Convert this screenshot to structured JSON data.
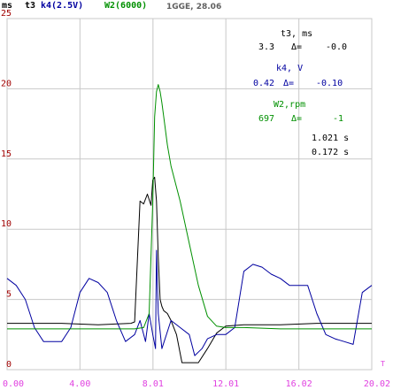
{
  "colors": {
    "background": "#ffffff",
    "grid": "#c8c8c8",
    "axis_tick_labels_y": "#a00000",
    "axis_tick_labels_x": "#e040e0",
    "t3": "#000000",
    "k4": "#0000a0",
    "w2": "#009000",
    "header_gray": "#606060"
  },
  "header": {
    "unit": "ms",
    "t3_label": "t3",
    "k4_label": "k4(2.5V)",
    "w2_label": "W2(6000)",
    "info": "1GGE, 28.06"
  },
  "readout": {
    "t3_title": "t3, ms",
    "t3_value": "3.3",
    "t3_delta_sign": "Δ=",
    "t3_delta": "-0.0",
    "k4_title": "k4, V",
    "k4_value": "0.42",
    "k4_delta_sign": "Δ=",
    "k4_delta": "-0.10",
    "w2_title": "W2,rpm",
    "w2_value": "697",
    "w2_delta_sign": "Δ=",
    "w2_delta": "-1",
    "time1": "1.021 s",
    "time2": "0.172 s"
  },
  "chart_data": {
    "type": "line",
    "title": "",
    "xlabel": "",
    "ylabel": "ms",
    "x_end_marker": "T",
    "xlim": [
      0,
      20.02
    ],
    "ylim": [
      0,
      25
    ],
    "grid": true,
    "x_ticks": [
      "0.00",
      "4.00",
      "8.01",
      "12.01",
      "16.02",
      "20.02"
    ],
    "x_tick_values": [
      0,
      4.0,
      8.01,
      12.01,
      16.02,
      20.02
    ],
    "y_ticks": [
      "0",
      "5",
      "10",
      "15",
      "20",
      "25"
    ],
    "y_tick_values": [
      0,
      5,
      10,
      15,
      20,
      25
    ],
    "series": [
      {
        "name": "t3",
        "color": "#000000",
        "x": [
          0,
          3,
          5,
          6.8,
          7.0,
          7.3,
          7.5,
          7.7,
          7.9,
          8.0,
          8.1,
          8.2,
          8.3,
          8.4,
          8.5,
          8.6,
          8.8,
          9.0,
          9.3,
          9.6,
          10.5,
          11.0,
          11.5,
          12.0,
          13.0,
          15.0,
          17.0,
          19.0,
          20.02
        ],
        "y": [
          3.3,
          3.3,
          3.2,
          3.3,
          3.4,
          12.0,
          11.8,
          12.5,
          11.7,
          13.5,
          13.7,
          12.0,
          8.0,
          5.0,
          4.5,
          4.2,
          4.0,
          3.5,
          2.5,
          0.5,
          0.5,
          1.5,
          2.6,
          3.1,
          3.2,
          3.2,
          3.3,
          3.3,
          3.3
        ]
      },
      {
        "name": "k4",
        "color": "#0000a0",
        "x": [
          0,
          0.5,
          1.0,
          1.5,
          2.0,
          3.0,
          3.5,
          4.0,
          4.5,
          5.0,
          5.5,
          6.0,
          6.5,
          7.0,
          7.3,
          7.6,
          7.8,
          8.0,
          8.15,
          8.2,
          8.3,
          8.5,
          9.0,
          9.5,
          10.0,
          10.3,
          10.7,
          11.0,
          11.5,
          12.0,
          12.5,
          13.0,
          13.5,
          14.0,
          14.5,
          15.0,
          15.5,
          16.0,
          16.5,
          17.0,
          17.5,
          18.0,
          18.5,
          19.0,
          19.5,
          20.02
        ],
        "y": [
          6.5,
          6.0,
          5.0,
          3.0,
          2.0,
          2.0,
          3.0,
          5.5,
          6.5,
          6.2,
          5.5,
          3.5,
          2.0,
          2.5,
          3.5,
          2.0,
          4.0,
          2.5,
          1.5,
          8.5,
          4.0,
          1.5,
          3.5,
          3.0,
          2.5,
          1.0,
          1.5,
          2.2,
          2.5,
          2.5,
          3.0,
          7.0,
          7.5,
          7.3,
          6.8,
          6.5,
          6.0,
          6.0,
          6.0,
          4.0,
          2.5,
          2.2,
          2.0,
          1.8,
          5.5,
          6.0
        ]
      },
      {
        "name": "W2",
        "color": "#009000",
        "x": [
          0,
          2.0,
          4.0,
          6.0,
          7.0,
          7.5,
          7.8,
          8.0,
          8.1,
          8.2,
          8.3,
          8.4,
          8.5,
          8.6,
          8.8,
          9.0,
          9.5,
          10.0,
          10.5,
          11.0,
          11.5,
          12.0,
          13.0,
          15.0,
          17.0,
          19.0,
          20.02
        ],
        "y": [
          2.9,
          2.9,
          2.9,
          2.9,
          2.9,
          3.0,
          4.0,
          12.0,
          18.0,
          19.8,
          20.3,
          19.8,
          19.0,
          18.0,
          16.0,
          14.5,
          12.0,
          9.0,
          6.0,
          3.8,
          3.1,
          3.0,
          3.0,
          2.9,
          2.9,
          2.9,
          2.9
        ]
      }
    ]
  }
}
